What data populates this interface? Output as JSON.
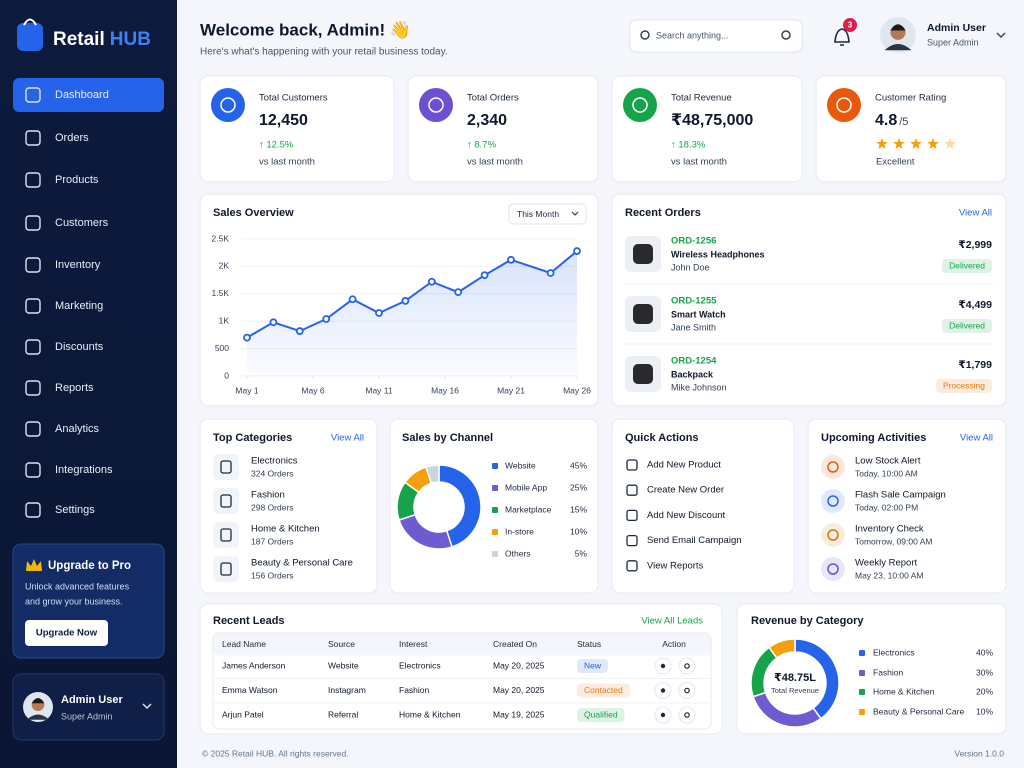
{
  "brand": {
    "name": "Retail",
    "accent": "HUB"
  },
  "nav": [
    "Dashboard",
    "Orders",
    "Products",
    "Customers",
    "Inventory",
    "Marketing",
    "Discounts",
    "Reports",
    "Analytics",
    "Integrations",
    "Settings"
  ],
  "upgrade": {
    "title": "Upgrade to Pro",
    "text": [
      "Unlock advanced features",
      "and grow your business."
    ],
    "button": "Upgrade Now"
  },
  "sidebar_user": {
    "name": "Admin User",
    "role": "Super Admin"
  },
  "header": {
    "title": "Welcome back, Admin! 👋",
    "subtitle": "Here's what's happening with your retail business today.",
    "search_placeholder": "Search anything...",
    "notifications": "3",
    "user": {
      "name": "Admin User",
      "role": "Super Admin"
    }
  },
  "kpis": [
    {
      "label": "Total Customers",
      "value": "12,450",
      "change": "↑ 12.5%",
      "note": "vs last month",
      "color": "#2563eb"
    },
    {
      "label": "Total Orders",
      "value": "2,340",
      "change": "↑ 8.7%",
      "note": "vs last month",
      "color": "#6d4fd1"
    },
    {
      "label": "Total Revenue",
      "value": "₹48,75,000",
      "change": "↑ 18.3%",
      "note": "vs last month",
      "color": "#16a34a"
    },
    {
      "label": "Customer Rating",
      "value": "4.8",
      "suffix": "/5",
      "note": "Excellent",
      "color": "#ea580c"
    }
  ],
  "recent_orders": {
    "title": "Recent Orders",
    "link": "View All",
    "orders": [
      {
        "id": "ORD-1256",
        "product": "Wireless Headphones",
        "customer": "John Doe",
        "price": "₹2,999",
        "status": "Delivered",
        "status_color": "#16a34a"
      },
      {
        "id": "ORD-1255",
        "product": "Smart Watch",
        "customer": "Jane Smith",
        "price": "₹4,499",
        "status": "Delivered",
        "status_color": "#16a34a"
      },
      {
        "id": "ORD-1254",
        "product": "Backpack",
        "customer": "Mike Johnson",
        "price": "₹1,799",
        "status": "Processing",
        "status_color": "#ea7a0c"
      }
    ]
  },
  "top_categories": {
    "title": "Top Categories",
    "link": "View All",
    "items": [
      {
        "name": "Electronics",
        "orders": "324 Orders"
      },
      {
        "name": "Fashion",
        "orders": "298 Orders"
      },
      {
        "name": "Home & Kitchen",
        "orders": "187 Orders"
      },
      {
        "name": "Beauty & Personal Care",
        "orders": "156 Orders"
      }
    ]
  },
  "quick_actions": {
    "title": "Quick Actions",
    "items": [
      "Add New Product",
      "Create New Order",
      "Add New Discount",
      "Send Email Campaign",
      "View Reports"
    ]
  },
  "upcoming": {
    "title": "Upcoming Activities",
    "link": "View All",
    "items": [
      {
        "title": "Low Stock Alert",
        "time": "Today, 10:00 AM",
        "color": "#ea580c"
      },
      {
        "title": "Flash Sale Campaign",
        "time": "Today, 02:00 PM",
        "color": "#2563eb"
      },
      {
        "title": "Inventory Check",
        "time": "Tomorrow, 09:00 AM",
        "color": "#d97706"
      },
      {
        "title": "Weekly Report",
        "time": "May 23, 10:00 AM",
        "color": "#6d4fd1"
      }
    ]
  },
  "leads": {
    "title": "Recent Leads",
    "link": "View All Leads",
    "columns": [
      "Lead Name",
      "Source",
      "Interest",
      "Created On",
      "Status",
      "Action"
    ],
    "rows": [
      {
        "name": "James Anderson",
        "source": "Website",
        "interest": "Electronics",
        "created": "May 20, 2025",
        "status": "New",
        "status_color": "#2563eb"
      },
      {
        "name": "Emma Watson",
        "source": "Instagram",
        "interest": "Fashion",
        "created": "May 20, 2025",
        "status": "Contacted",
        "status_color": "#ea7a0c"
      },
      {
        "name": "Arjun Patel",
        "source": "Referral",
        "interest": "Home & Kitchen",
        "created": "May 19, 2025",
        "status": "Qualified",
        "status_color": "#16a34a"
      }
    ]
  },
  "footer": {
    "copyright": "© 2025 Retail HUB. All rights reserved.",
    "version": "Version 1.0.0"
  },
  "chart_data": [
    {
      "type": "line",
      "title": "Sales Overview",
      "period": "This Month",
      "x": [
        1,
        3,
        5,
        7,
        9,
        11,
        13,
        15,
        17,
        19,
        21,
        24,
        26
      ],
      "values": [
        700,
        980,
        820,
        1040,
        1400,
        1150,
        1370,
        1720,
        1530,
        1840,
        2120,
        1880,
        2280
      ],
      "color": "#2563eb",
      "xlim": [
        1,
        26
      ],
      "xticks": [
        {
          "value": 1,
          "label": "May 1"
        },
        {
          "value": 6,
          "label": "May 6"
        },
        {
          "value": 11,
          "label": "May 11"
        },
        {
          "value": 16,
          "label": "May 16"
        },
        {
          "value": 21,
          "label": "May 21"
        },
        {
          "value": 26,
          "label": "May 26"
        }
      ],
      "ylim": [
        0,
        2500
      ],
      "yticks": [
        0,
        500,
        {
          "value": 1000,
          "label": "1K"
        },
        {
          "value": 1500,
          "label": "1.5K"
        },
        {
          "value": 2000,
          "label": "2K"
        },
        {
          "value": 2500,
          "label": "2.5K"
        }
      ],
      "grid": true
    },
    {
      "type": "pie",
      "title": "Sales by Channel",
      "categories": [
        "Website",
        "Mobile App",
        "Marketplace",
        "In-store",
        "Others"
      ],
      "values": [
        45,
        25,
        15,
        10,
        5
      ],
      "value_labels": [
        "45%",
        "25%",
        "15%",
        "10%",
        "5%"
      ],
      "colors": [
        "#2563eb",
        "#6d5bd0",
        "#16a34a",
        "#f5a00b",
        "#cbd5e1"
      ]
    },
    {
      "type": "pie",
      "title": "Revenue by Category",
      "center_value": "₹48.75L",
      "center_label": "Total Revenue",
      "categories": [
        "Electronics",
        "Fashion",
        "Home & Kitchen",
        "Beauty & Personal Care"
      ],
      "values": [
        40,
        30,
        20,
        10
      ],
      "value_labels": [
        "40%",
        "30%",
        "20%",
        "10%"
      ],
      "colors": [
        "#2563eb",
        "#6d5bd0",
        "#16a34a",
        "#f5a00b"
      ]
    }
  ]
}
